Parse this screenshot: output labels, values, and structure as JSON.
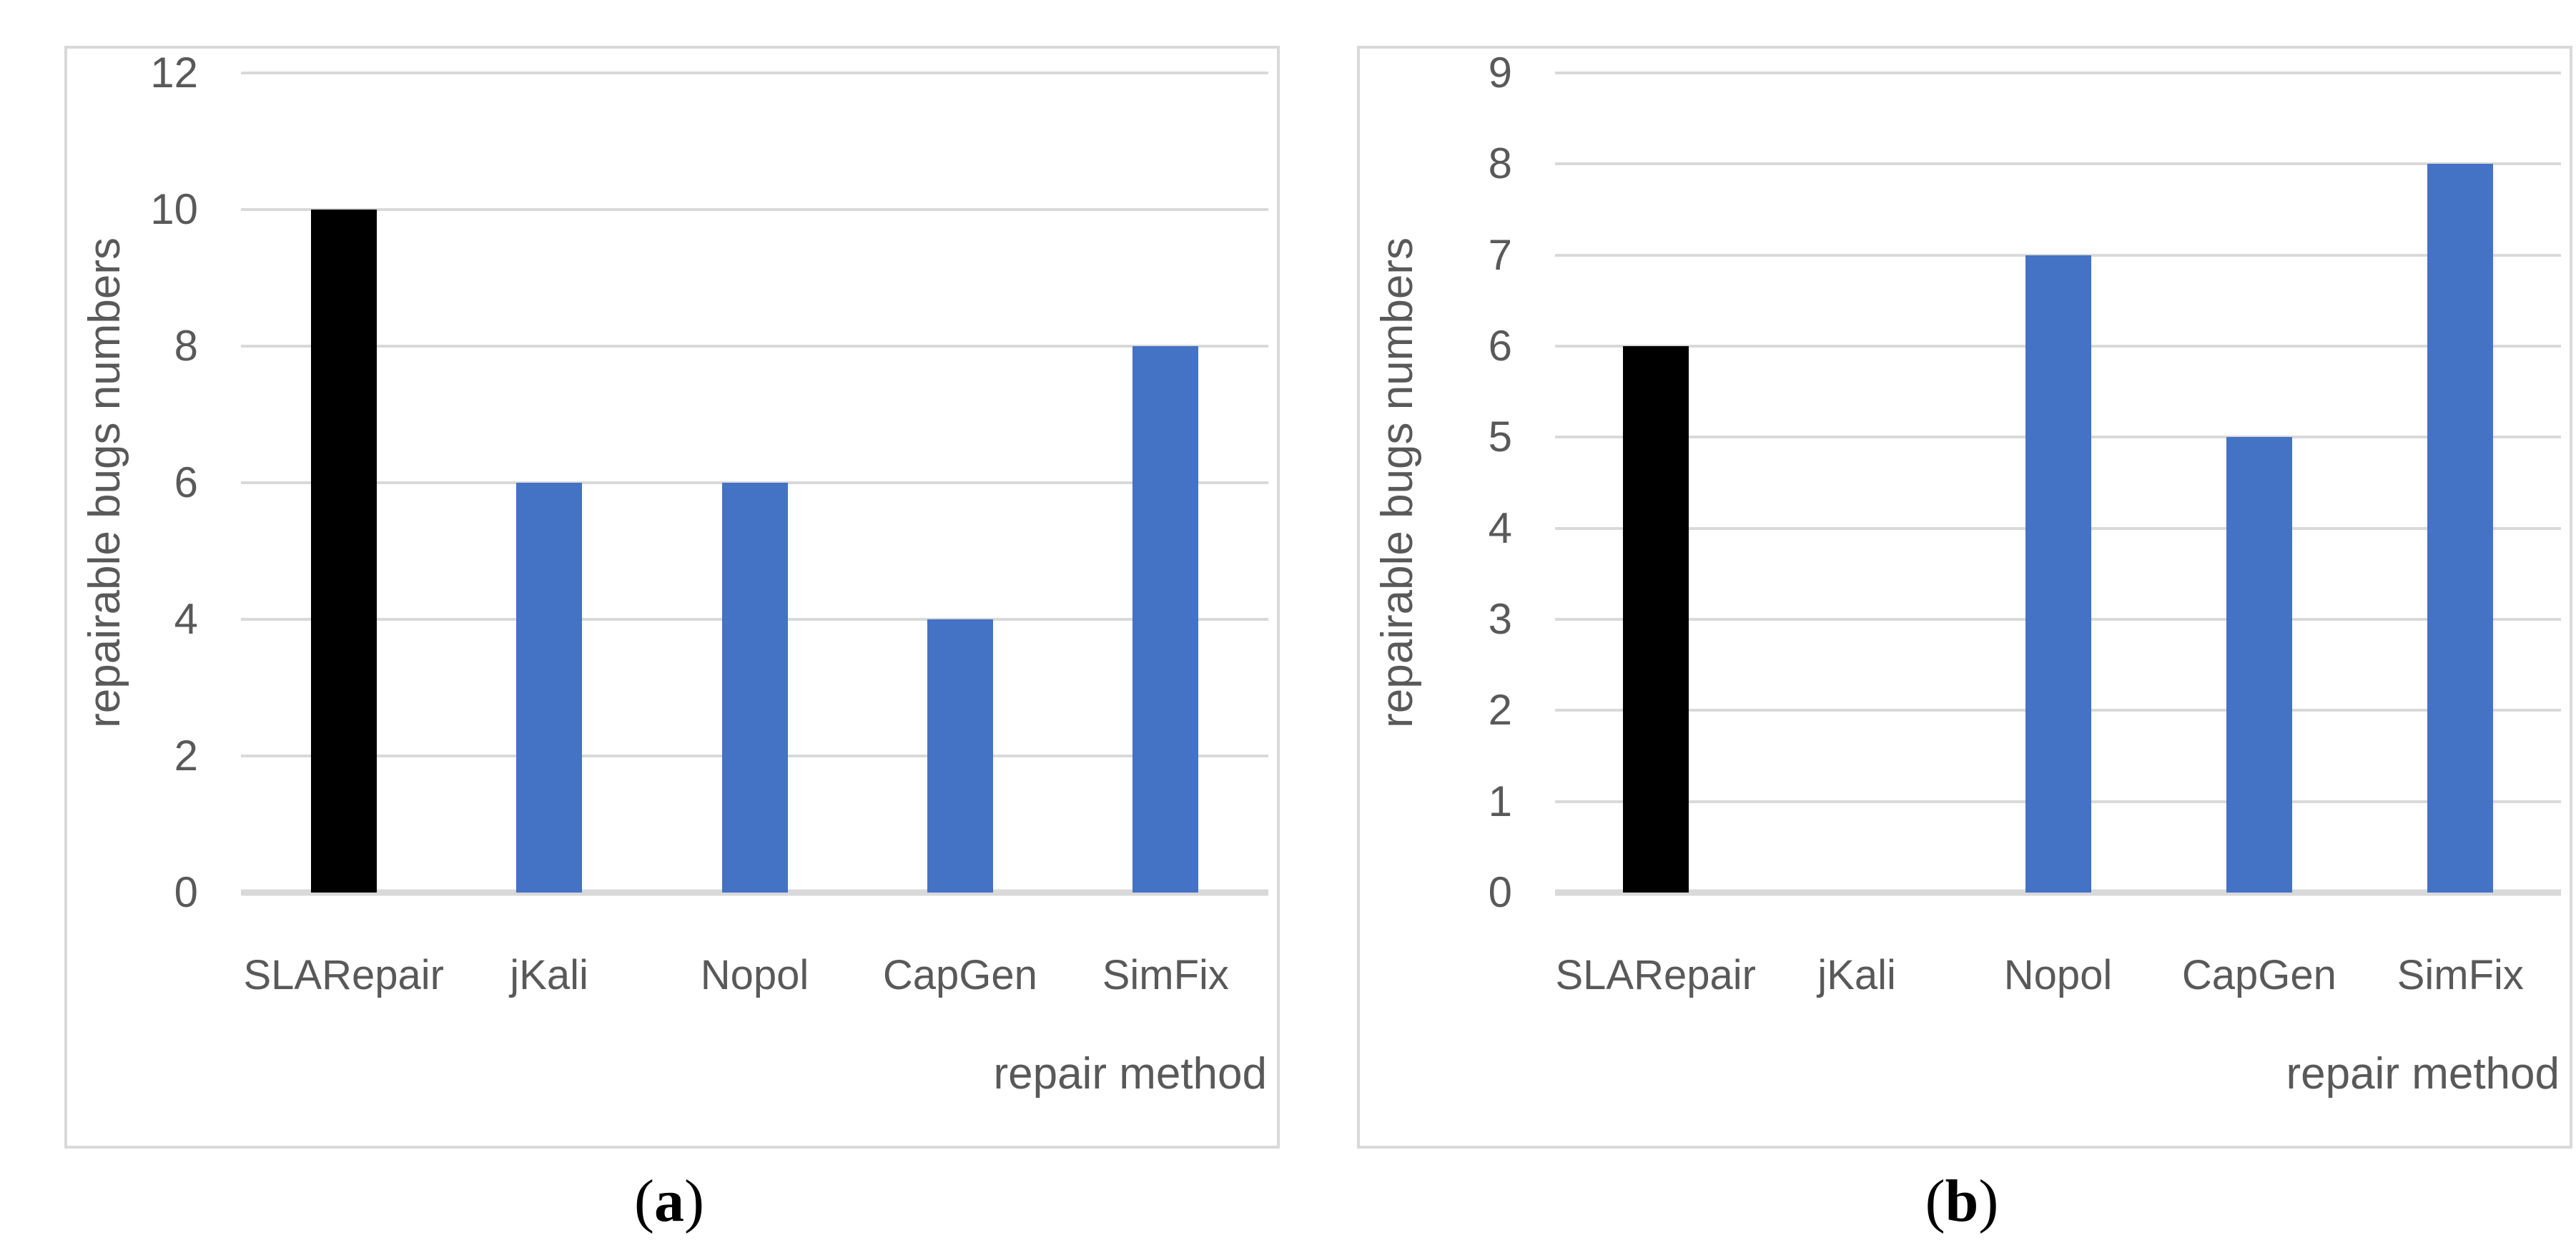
{
  "page": {
    "background": "#ffffff"
  },
  "style": {
    "bar_blue": "#4472C4",
    "bar_black": "#000000",
    "gridline_color": "#D9D9D9",
    "panel_border_color": "#D9D9D9",
    "axis_text_color": "#595959",
    "caption_color": "#000000"
  },
  "chart_data": [
    {
      "type": "bar",
      "panel": "a",
      "caption": {
        "open": "(",
        "letter": "a",
        "close": ")"
      },
      "title": "",
      "ylabel": "repairable bugs numbers",
      "xlabel": "repair method",
      "categories": [
        "SLARepair",
        "jKali",
        "Nopol",
        "CapGen",
        "SimFix"
      ],
      "values": [
        10,
        6,
        6,
        4,
        8
      ],
      "bar_colors": [
        "#000000",
        "#4472C4",
        "#4472C4",
        "#4472C4",
        "#4472C4"
      ],
      "ylim": [
        0,
        12
      ],
      "ytick_step": 2,
      "yticks": [
        0,
        2,
        4,
        6,
        8,
        10,
        12
      ],
      "grid": true,
      "legend": false
    },
    {
      "type": "bar",
      "panel": "b",
      "caption": {
        "open": "(",
        "letter": "b",
        "close": ")"
      },
      "title": "",
      "ylabel": "repairable bugs numbers",
      "xlabel": "repair method",
      "categories": [
        "SLARepair",
        "jKali",
        "Nopol",
        "CapGen",
        "SimFix"
      ],
      "values": [
        6,
        0,
        7,
        5,
        8
      ],
      "bar_colors": [
        "#000000",
        "#4472C4",
        "#4472C4",
        "#4472C4",
        "#4472C4"
      ],
      "ylim": [
        0,
        9
      ],
      "ytick_step": 1,
      "yticks": [
        0,
        1,
        2,
        3,
        4,
        5,
        6,
        7,
        8,
        9
      ],
      "grid": true,
      "legend": false
    }
  ]
}
